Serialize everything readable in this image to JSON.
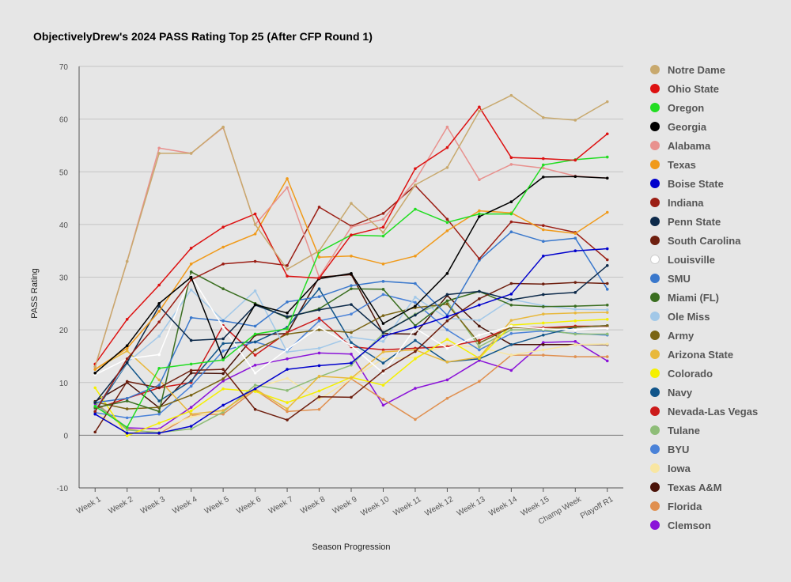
{
  "chart_data": {
    "type": "line",
    "title": "ObjectivelyDrew's 2024 PASS Rating Top 25 (After CFP Round 1)",
    "xlabel": "Season Progression",
    "ylabel": "PASS Rating",
    "ylim": [
      -10,
      70
    ],
    "yticks": [
      -10,
      0,
      10,
      20,
      30,
      40,
      50,
      60,
      70
    ],
    "grid": "horizontal",
    "legend": "right",
    "categories": [
      "Week 1",
      "Week 2",
      "Week 3",
      "Week 4",
      "Week 5",
      "Week 6",
      "Week 7",
      "Week 8",
      "Week 9",
      "Week 10",
      "Week 11",
      "Week 12",
      "Week 13",
      "Week 14",
      "Week 15",
      "Champ Week",
      "Playoff R1"
    ],
    "series": [
      {
        "name": "Notre Dame",
        "color": "#c8a96e",
        "values": [
          13,
          33,
          53.5,
          53.5,
          58.5,
          40,
          31.5,
          35,
          44,
          38.5,
          47.5,
          50.8,
          61.5,
          64.5,
          60.3,
          59.8,
          63.3
        ]
      },
      {
        "name": "Ohio State",
        "color": "#dd1111",
        "values": [
          13.5,
          22,
          28.5,
          35.5,
          39.5,
          42,
          30.2,
          29.8,
          38,
          39.5,
          50.6,
          54.6,
          62.3,
          52.7,
          52.5,
          52.2,
          57.2
        ]
      },
      {
        "name": "Oregon",
        "color": "#22dd22",
        "values": [
          5.5,
          1.5,
          12.7,
          13.5,
          14.3,
          19.2,
          20.2,
          34.8,
          38,
          37.8,
          42.9,
          40.4,
          42,
          42,
          51.3,
          52.3,
          52.8
        ]
      },
      {
        "name": "Georgia",
        "color": "#000000",
        "values": [
          11.8,
          17,
          25,
          30,
          14.5,
          24.8,
          23.2,
          29.7,
          30.7,
          21.2,
          24.5,
          30.7,
          41.5,
          44.3,
          49,
          49.1,
          48.8
        ]
      },
      {
        "name": "Alabama",
        "color": "#e8918e",
        "values": [
          13,
          33,
          54.5,
          53.5,
          58.4,
          40,
          47,
          30,
          39.5,
          41,
          48.3,
          58.5,
          48.5,
          51.4,
          50.7,
          49.2,
          48.8
        ]
      },
      {
        "name": "Texas",
        "color": "#f09a1a",
        "values": [
          12.5,
          16.5,
          23.5,
          32.5,
          35.7,
          38.2,
          48.7,
          33.8,
          34,
          32.5,
          34,
          38.8,
          42.6,
          42.2,
          39,
          38.3,
          42.3
        ]
      },
      {
        "name": "Boise State",
        "color": "#0000cc",
        "values": [
          4,
          0.4,
          0.4,
          1.7,
          5.7,
          8.8,
          12.5,
          13.2,
          13.7,
          18.8,
          20.5,
          22.5,
          24.7,
          26.8,
          34,
          35,
          35.4
        ]
      },
      {
        "name": "Indiana",
        "color": "#9b1e14",
        "values": [
          4.5,
          14.5,
          21.5,
          29.5,
          32.5,
          33,
          32.2,
          43.3,
          39.7,
          42.1,
          47.4,
          41,
          33.5,
          40.5,
          39.8,
          38.5,
          33.3
        ]
      },
      {
        "name": "Penn State",
        "color": "#0d2a4a",
        "values": [
          6.2,
          13.8,
          24.5,
          18,
          18.3,
          24.7,
          22.5,
          23.8,
          24.8,
          19.5,
          22.8,
          26.7,
          27.3,
          25.7,
          26.7,
          27.1,
          32.2
        ]
      },
      {
        "name": "South Carolina",
        "color": "#6e1f0f",
        "values": [
          0.6,
          10.2,
          9,
          12.3,
          12.5,
          4.9,
          2.9,
          7.3,
          7.2,
          12.2,
          15.9,
          21.7,
          25.9,
          28.8,
          28.7,
          29,
          28.8
        ]
      },
      {
        "name": "Louisville",
        "color": "#ffffff",
        "values": [
          11.5,
          14.5,
          15.3,
          30.2,
          20.5,
          11.8,
          16.3,
          20.5,
          17,
          11.8,
          20.3,
          16.5,
          19,
          20.7,
          20.2,
          20,
          20.3
        ]
      },
      {
        "name": "SMU",
        "color": "#3a78cc",
        "values": [
          6.2,
          7,
          9.5,
          22.3,
          21.7,
          20.7,
          25.3,
          26.3,
          28.4,
          29.2,
          28.8,
          22.8,
          33.2,
          38.6,
          36.8,
          37.4,
          27.7
        ]
      },
      {
        "name": "Miami (FL)",
        "color": "#3a6e20",
        "values": [
          5.2,
          6.5,
          4.5,
          31,
          27.8,
          25,
          22.3,
          24,
          27.8,
          27.7,
          20.8,
          25.5,
          27.3,
          24.7,
          24.4,
          24.5,
          24.7
        ]
      },
      {
        "name": "Ole Miss",
        "color": "#a2c8e8",
        "values": [
          5,
          13.8,
          18.8,
          27.6,
          21.8,
          27.4,
          15.8,
          16.5,
          18.6,
          17.8,
          26.2,
          22.2,
          21.8,
          25.8,
          24.6,
          23.9,
          23.8
        ]
      },
      {
        "name": "Army",
        "color": "#7a6414",
        "values": [
          6.3,
          5,
          5.3,
          7.6,
          10.7,
          16.2,
          19.2,
          20,
          19.5,
          22.7,
          24.2,
          24.9,
          17.5,
          20.5,
          20.2,
          20.5,
          20.8
        ]
      },
      {
        "name": "Arizona State",
        "color": "#e8b83c",
        "values": [
          12.5,
          16,
          10.5,
          4,
          4.7,
          8.8,
          5,
          11.2,
          10.8,
          15.8,
          16.2,
          13.9,
          14.8,
          21.8,
          23,
          23.2,
          23.3
        ]
      },
      {
        "name": "Colorado",
        "color": "#f5f000",
        "values": [
          9,
          -0.1,
          2.3,
          4.6,
          8.8,
          8.3,
          6.2,
          8.4,
          11,
          9.5,
          14.5,
          18.2,
          14.6,
          20.9,
          21.3,
          21.7,
          22
        ]
      },
      {
        "name": "Navy",
        "color": "#11558a",
        "values": [
          4.5,
          13.7,
          6.5,
          10.3,
          17.4,
          17.7,
          20.5,
          27.8,
          17.6,
          13.7,
          18,
          13.9,
          14.5,
          17.2,
          19,
          20.5,
          20.8
        ]
      },
      {
        "name": "Nevada-Las Vegas",
        "color": "#cc1a1a",
        "values": [
          5,
          7,
          9,
          10,
          20.8,
          15.2,
          19.5,
          22.2,
          16.8,
          16.2,
          16.5,
          16.8,
          18,
          20.5,
          20.4,
          20.7,
          20.7
        ]
      },
      {
        "name": "Tulane",
        "color": "#8ebd78",
        "values": [
          6.2,
          1,
          0.5,
          1.2,
          4.4,
          9.5,
          8.5,
          11.1,
          13.3,
          19.3,
          23,
          25.4,
          16.8,
          20,
          20,
          19.2,
          19.2
        ]
      },
      {
        "name": "BYU",
        "color": "#4a82d8",
        "values": [
          4.3,
          3.3,
          4,
          9.3,
          16,
          17.7,
          16,
          21.7,
          23,
          26.7,
          25.2,
          20,
          16.2,
          19.3,
          19.8,
          19.3,
          19
        ]
      },
      {
        "name": "Iowa",
        "color": "#f8e6a2",
        "values": [
          4.5,
          0.3,
          1,
          3.5,
          4.5,
          9,
          10.8,
          6.8,
          10.7,
          14.5,
          14.8,
          17.2,
          16.7,
          15.2,
          16.2,
          17.2,
          17.3
        ]
      },
      {
        "name": "Texas A&M",
        "color": "#4a1208",
        "values": [
          6.4,
          10,
          5.2,
          11.8,
          11.7,
          19,
          19.3,
          30,
          30.5,
          19.3,
          19.2,
          26.5,
          20.7,
          17.2,
          17.2,
          17.2,
          17.2
        ]
      },
      {
        "name": "Florida",
        "color": "#e09050",
        "values": [
          6.3,
          1.2,
          0.3,
          3.8,
          4,
          8.6,
          4.5,
          4.9,
          10.7,
          6.8,
          3,
          7,
          10.2,
          15.2,
          15.2,
          14.9,
          14.9
        ]
      },
      {
        "name": "Clemson",
        "color": "#8a12d8",
        "values": [
          6,
          1.4,
          1.2,
          5.3,
          10.3,
          13.3,
          14.5,
          15.6,
          15.4,
          5.7,
          8.9,
          10.5,
          14.2,
          12.3,
          17.6,
          17.8,
          14.1
        ]
      }
    ]
  }
}
